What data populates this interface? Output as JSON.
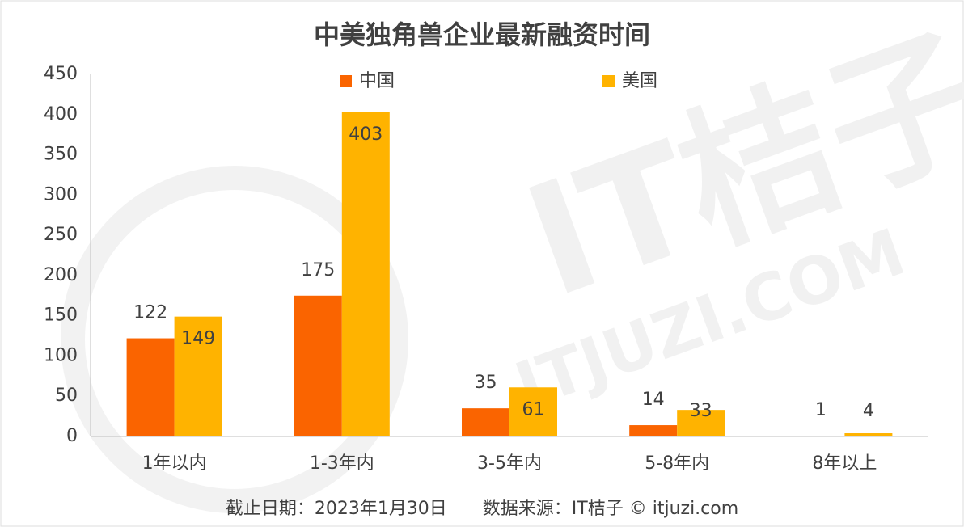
{
  "chart_data": {
    "type": "bar",
    "title": "中美独角兽企业最新融资时间",
    "categories": [
      "1年以内",
      "1-3年内",
      "3-5年内",
      "5-8年内",
      "8年以上"
    ],
    "series": [
      {
        "name": "中国",
        "color": "#fa6400",
        "values": [
          122,
          175,
          35,
          14,
          1
        ]
      },
      {
        "name": "美国",
        "color": "#ffb300",
        "values": [
          149,
          403,
          61,
          33,
          4
        ]
      }
    ],
    "ylim": [
      0,
      450
    ],
    "yticks": [
      0,
      50,
      100,
      150,
      200,
      250,
      300,
      350,
      400,
      450
    ],
    "legend": "top",
    "grid": false,
    "note": "截止日期：2023年1月30日　　数据来源：IT桔子 © itjuzi.com",
    "watermark": [
      "IT桔子",
      "ITJUZI.COM"
    ]
  }
}
